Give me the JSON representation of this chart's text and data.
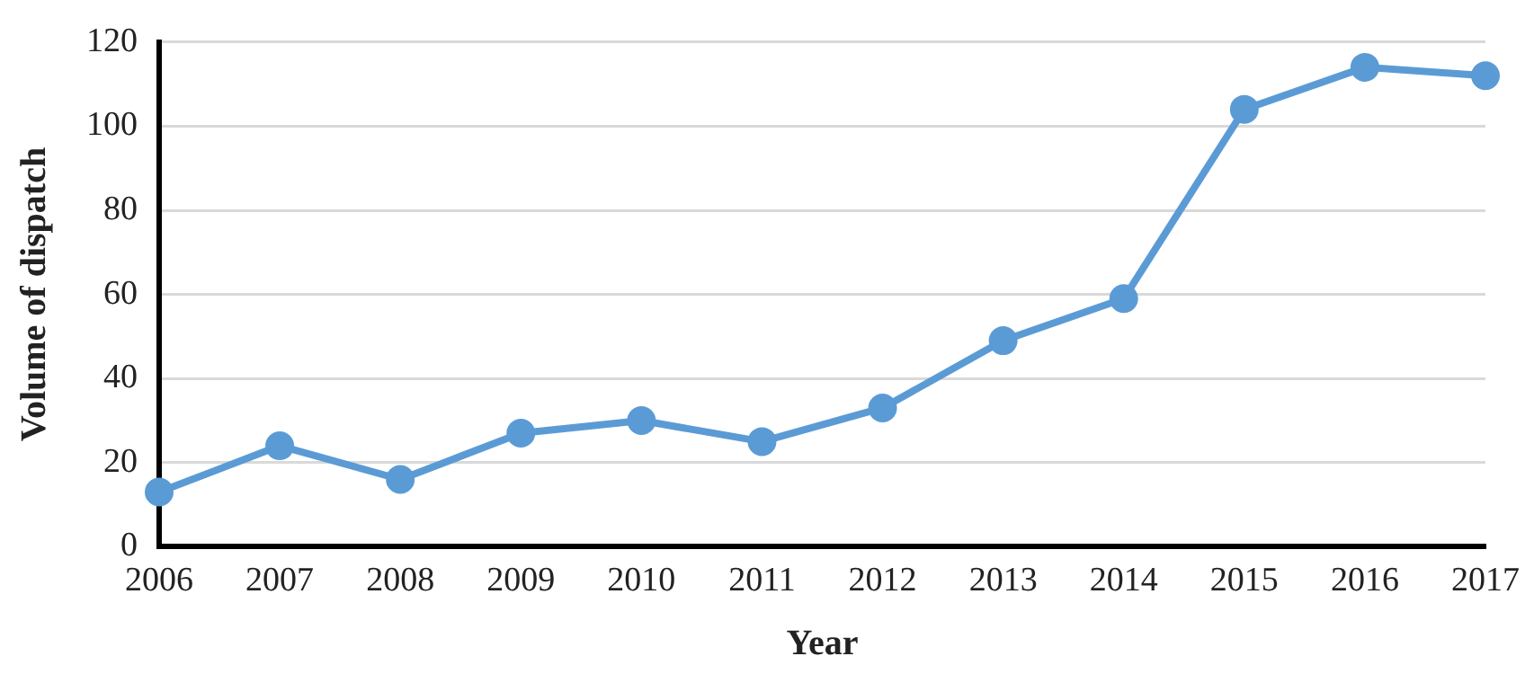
{
  "chart_data": {
    "type": "line",
    "xlabel": "Year",
    "ylabel": "Volume of dispatch",
    "categories": [
      "2006",
      "2007",
      "2008",
      "2009",
      "2010",
      "2011",
      "2012",
      "2013",
      "2014",
      "2015",
      "2016",
      "2017"
    ],
    "series": [
      {
        "color": "#5b9bd5",
        "values": [
          13,
          24,
          16,
          27,
          30,
          25,
          33,
          49,
          59,
          104,
          114,
          112
        ]
      }
    ],
    "ylim": [
      0,
      120
    ],
    "yticks": [
      0,
      20,
      40,
      60,
      80,
      100,
      120
    ],
    "grid": "y",
    "legend": false,
    "marker": "circle",
    "line_style": "solid"
  }
}
